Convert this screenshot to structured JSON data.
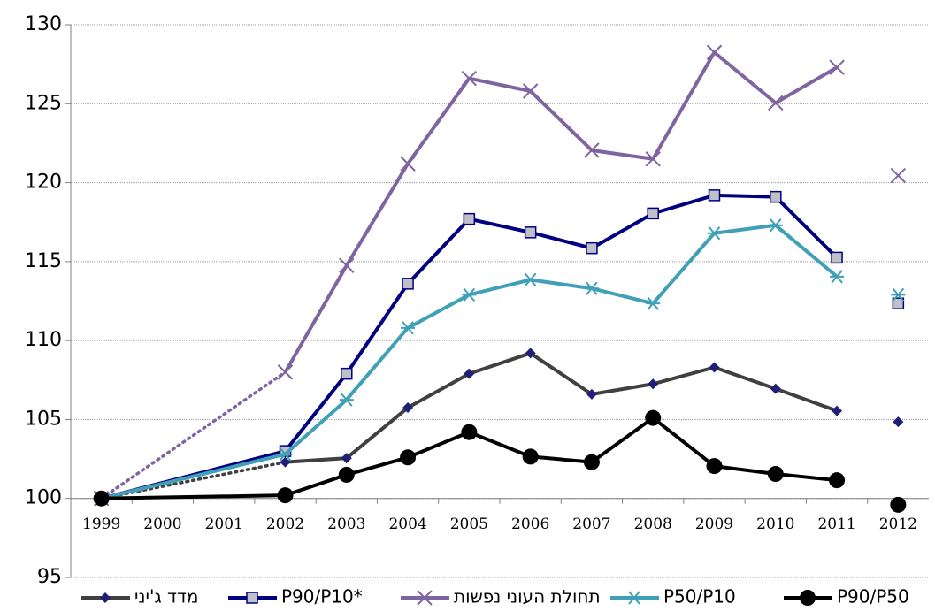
{
  "chart_data": {
    "type": "line",
    "categories": [
      "1999",
      "2000",
      "2001",
      "2002",
      "2003",
      "2004",
      "2005",
      "2006",
      "2007",
      "2008",
      "2009",
      "2010",
      "2011",
      "2012"
    ],
    "ylim": [
      95,
      130
    ],
    "yticks": [
      95,
      100,
      105,
      110,
      115,
      120,
      125,
      130
    ],
    "grid": true,
    "xaxis_crosses": 100,
    "last_point_detached": true,
    "legend": "bottom",
    "series": [
      {
        "name": "מדד ג'יני",
        "color": "#404040",
        "marker": "diamond",
        "marker_color": "#1f1f78",
        "gap_dotted": true,
        "values": [
          100,
          null,
          null,
          102.3,
          102.55,
          105.75,
          107.9,
          109.2,
          106.6,
          107.25,
          108.3,
          106.95,
          105.55,
          104.85
        ]
      },
      {
        "name": "P90/P10*",
        "color": "#000080",
        "marker": "square",
        "marker_color": "#c0c0c8",
        "gap_dotted": false,
        "values": [
          100,
          null,
          null,
          103,
          107.9,
          113.6,
          117.7,
          116.85,
          115.85,
          118.05,
          119.2,
          119.1,
          115.25,
          112.35
        ]
      },
      {
        "name": "תחולת העוני נפשות",
        "color": "#8064a2",
        "marker": "x",
        "marker_color": "#8064a2",
        "gap_dotted": true,
        "values": [
          100,
          null,
          null,
          108,
          114.75,
          121.2,
          126.6,
          125.8,
          122.05,
          121.5,
          128.25,
          125.05,
          127.3,
          120.45
        ]
      },
      {
        "name": "P50/P10",
        "color": "#3fa0b8",
        "marker": "star",
        "marker_color": "#3fa0b8",
        "gap_dotted": false,
        "values": [
          100,
          null,
          null,
          102.8,
          106.25,
          110.8,
          112.9,
          113.85,
          113.3,
          112.35,
          116.8,
          117.3,
          114.05,
          112.9
        ]
      },
      {
        "name": "P90/P50",
        "color": "#000000",
        "marker": "circle",
        "marker_color": "#000000",
        "gap_dotted": false,
        "values": [
          100,
          null,
          null,
          100.2,
          101.5,
          102.6,
          104.2,
          102.65,
          102.3,
          105.1,
          102.05,
          101.55,
          101.15,
          99.6
        ]
      }
    ]
  }
}
